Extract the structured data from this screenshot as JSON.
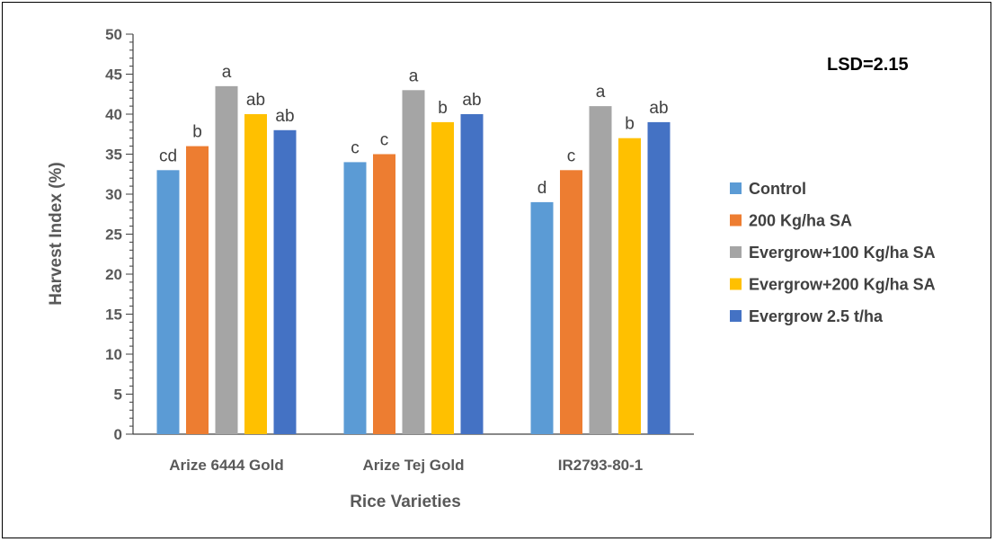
{
  "chart_data": {
    "type": "bar",
    "title": "",
    "annotation": "LSD=2.15",
    "xlabel": "Rice Varieties",
    "ylabel": "Harvest Index (%)",
    "ylim": [
      0,
      50
    ],
    "yticks": [
      0,
      5,
      10,
      15,
      20,
      25,
      30,
      35,
      40,
      45,
      50
    ],
    "categories": [
      "Arize 6444 Gold",
      "Arize Tej Gold",
      "IR2793-80-1"
    ],
    "legend_position": "right",
    "series": [
      {
        "name": "Control",
        "color": "#5B9BD5",
        "values": [
          33,
          34,
          29
        ],
        "labels": [
          "cd",
          "c",
          "d"
        ]
      },
      {
        "name": "200 Kg/ha SA",
        "color": "#ED7D31",
        "values": [
          36,
          35,
          33
        ],
        "labels": [
          "b",
          "c",
          "c"
        ]
      },
      {
        "name": "Evergrow+100 Kg/ha SA",
        "color": "#A5A5A5",
        "values": [
          43.5,
          43,
          41
        ],
        "labels": [
          "a",
          "a",
          "a"
        ]
      },
      {
        "name": "Evergrow+200 Kg/ha SA",
        "color": "#FFC000",
        "values": [
          40,
          39,
          37
        ],
        "labels": [
          "ab",
          "b",
          "b"
        ]
      },
      {
        "name": "Evergrow 2.5 t/ha",
        "color": "#4472C4",
        "values": [
          38,
          40,
          39
        ],
        "labels": [
          "ab",
          "ab",
          "ab"
        ]
      }
    ]
  }
}
